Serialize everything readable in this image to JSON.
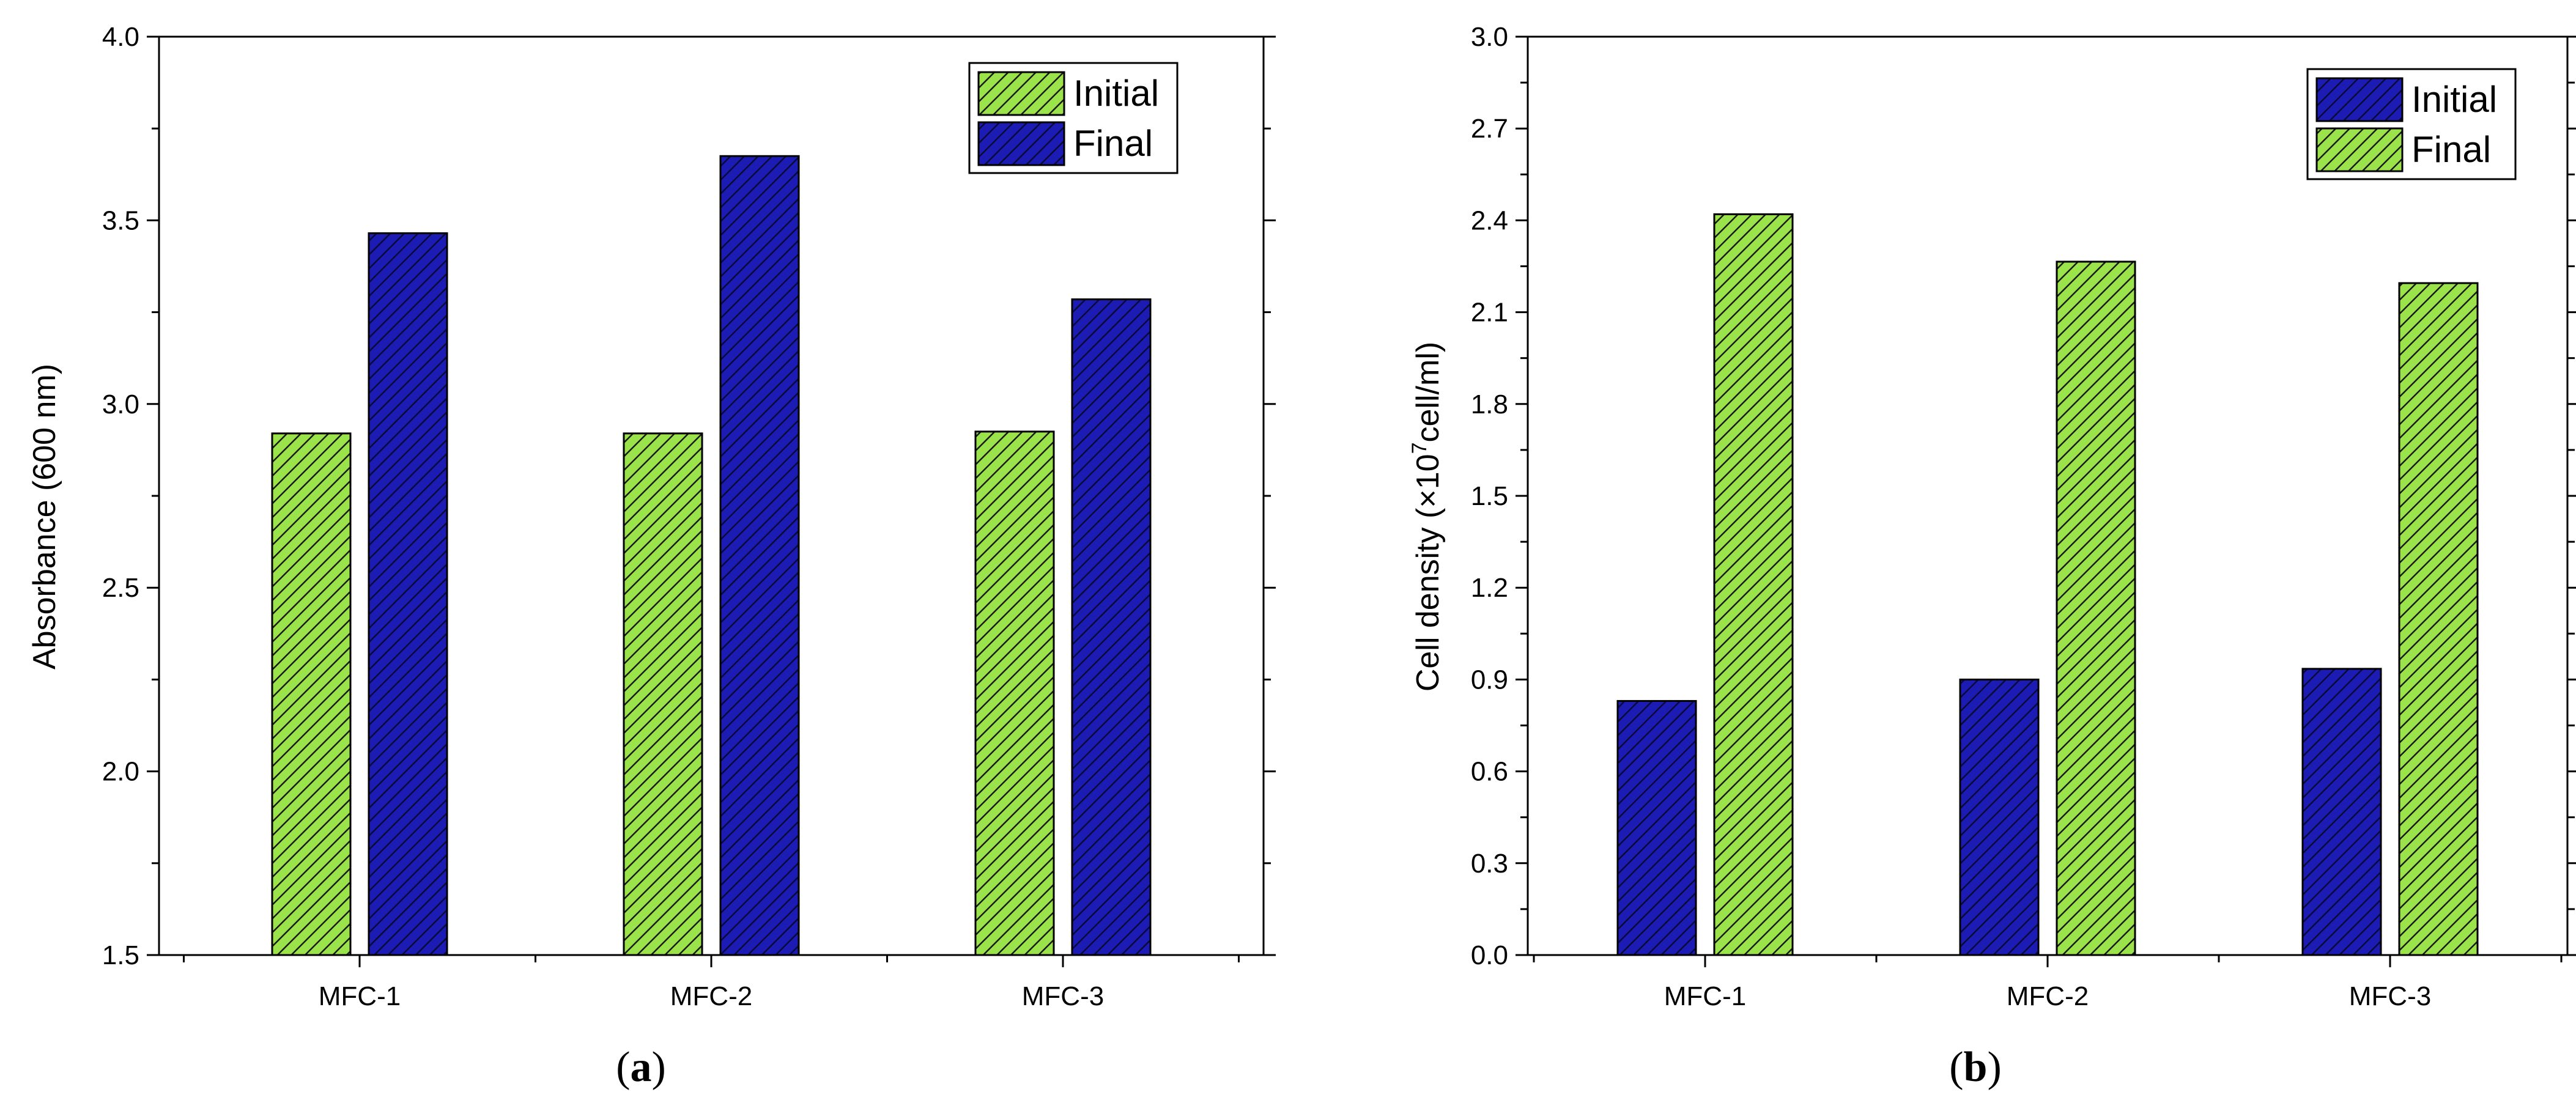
{
  "chart_data": [
    {
      "type": "bar",
      "caption": "(a)",
      "caption_letter": "a",
      "categories": [
        "MFC-1",
        "MFC-2",
        "MFC-3"
      ],
      "series": [
        {
          "name": "Initial",
          "color": "#9BE34B",
          "values": [
            2.92,
            2.92,
            2.925
          ]
        },
        {
          "name": "Final",
          "color": "#1C1CB4",
          "values": [
            3.465,
            3.675,
            3.285
          ]
        }
      ],
      "ylabel": "Absorbance (600 nm)",
      "xlabel": "",
      "ylim": [
        1.5,
        4.0
      ],
      "yticks": [
        "1.5",
        "2.0",
        "2.5",
        "3.0",
        "3.5",
        "4.0"
      ],
      "legend": "top-right",
      "grid": false
    },
    {
      "type": "bar",
      "caption": "(b)",
      "caption_letter": "b",
      "categories": [
        "MFC-1",
        "MFC-2",
        "MFC-3"
      ],
      "series": [
        {
          "name": "Initial",
          "color": "#1C1CB4",
          "values": [
            0.83,
            0.9,
            0.935
          ]
        },
        {
          "name": "Final",
          "color": "#9BE34B",
          "values": [
            2.42,
            2.265,
            2.195
          ]
        }
      ],
      "ylabel": "Cell density (×10⁷cell/ml)",
      "ylabel_parts": [
        "Cell density (×10",
        "7",
        "cell/ml)"
      ],
      "xlabel": "",
      "ylim": [
        0.0,
        3.0
      ],
      "yticks": [
        "0.0",
        "0.3",
        "0.6",
        "0.9",
        "1.2",
        "1.5",
        "1.8",
        "2.1",
        "2.4",
        "2.7",
        "3.0"
      ],
      "legend": "top-right",
      "grid": false
    }
  ]
}
